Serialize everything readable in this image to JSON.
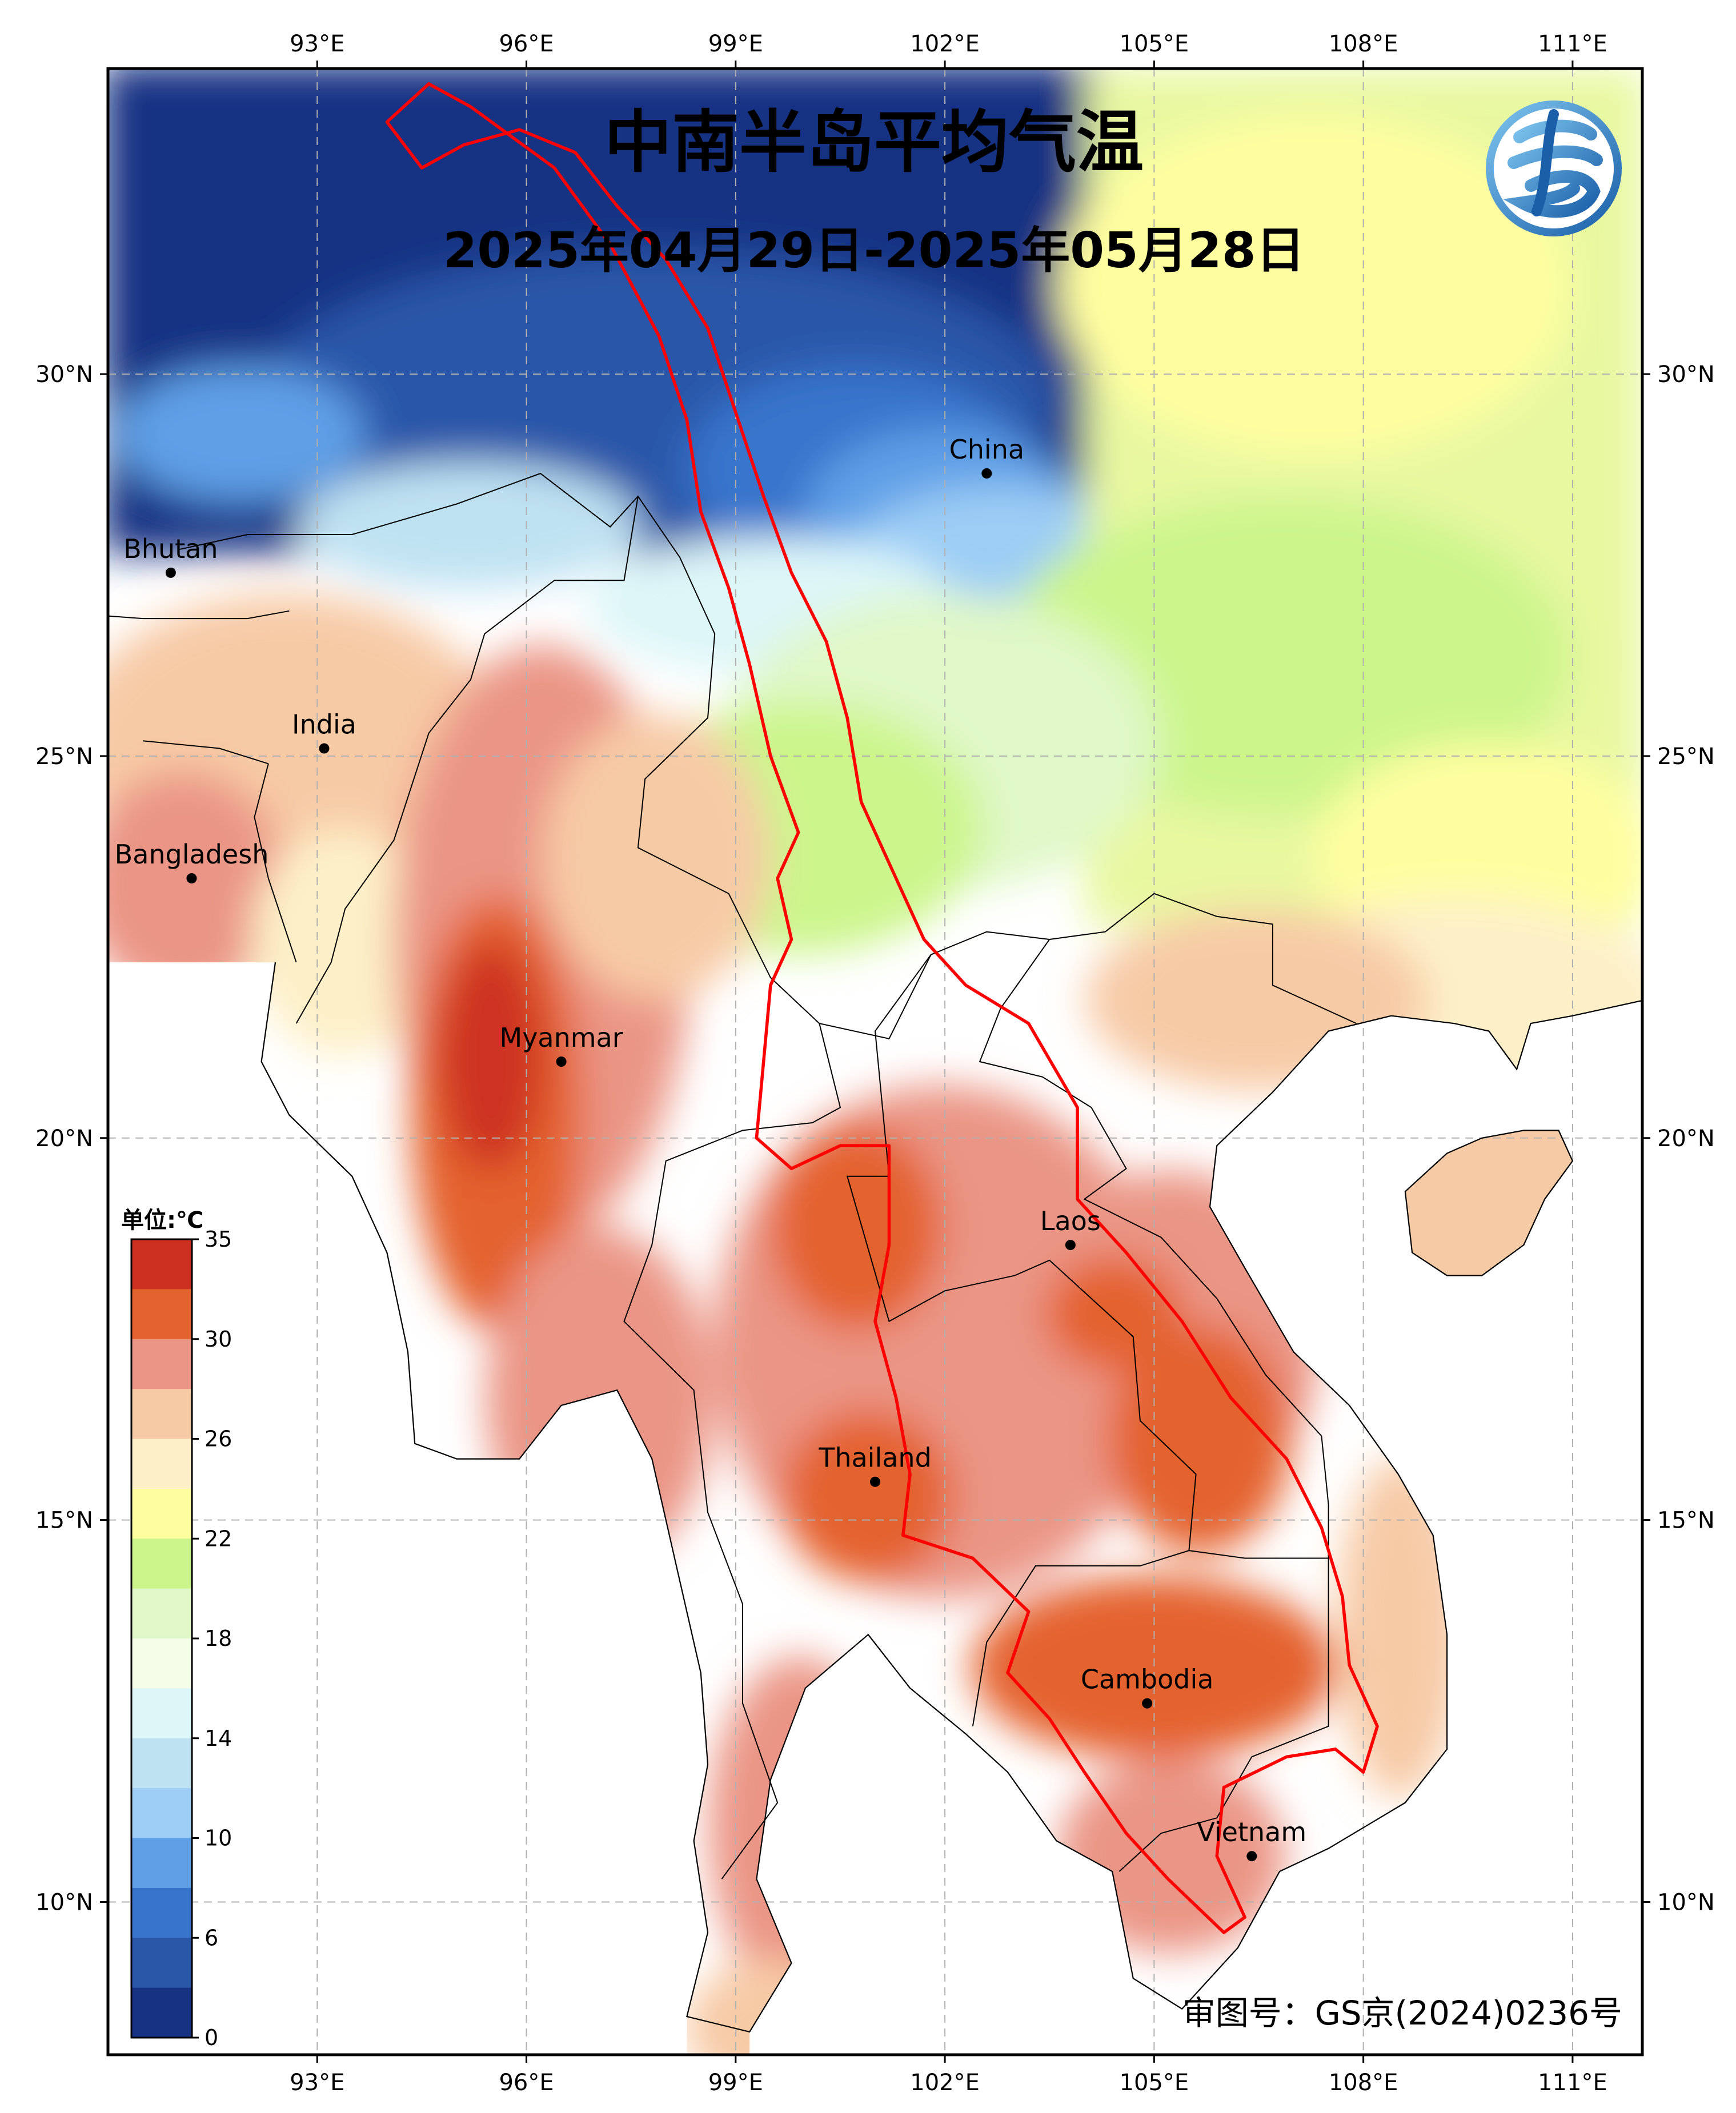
{
  "title": "中南半岛平均气温",
  "subtitle": "2025年04月29日-2025年05月28日",
  "review_number": "审图号：GS京(2024)0236号",
  "map": {
    "lon_range": [
      90,
      112
    ],
    "lat_range": [
      8,
      34
    ],
    "lon_ticks": [
      {
        "value": 93,
        "label": "93°E"
      },
      {
        "value": 96,
        "label": "96°E"
      },
      {
        "value": 99,
        "label": "99°E"
      },
      {
        "value": 102,
        "label": "102°E"
      },
      {
        "value": 105,
        "label": "105°E"
      },
      {
        "value": 108,
        "label": "108°E"
      },
      {
        "value": 111,
        "label": "111°E"
      }
    ],
    "lat_ticks": [
      {
        "value": 30,
        "label": "30°N"
      },
      {
        "value": 25,
        "label": "25°N"
      },
      {
        "value": 20,
        "label": "20°N"
      },
      {
        "value": 15,
        "label": "15°N"
      },
      {
        "value": 10,
        "label": "10°N"
      }
    ],
    "places": [
      {
        "name": "China",
        "lon": 102.6,
        "lat": 28.7
      },
      {
        "name": "Bhutan",
        "lon": 90.9,
        "lat": 27.4
      },
      {
        "name": "India",
        "lon": 93.1,
        "lat": 25.1
      },
      {
        "name": "Bangladesh",
        "lon": 91.2,
        "lat": 23.4
      },
      {
        "name": "Myanmar",
        "lon": 96.5,
        "lat": 21.0
      },
      {
        "name": "Laos",
        "lon": 103.8,
        "lat": 18.6
      },
      {
        "name": "Thailand",
        "lon": 101.0,
        "lat": 15.5
      },
      {
        "name": "Cambodia",
        "lon": 104.9,
        "lat": 12.6
      },
      {
        "name": "Vietnam",
        "lon": 106.4,
        "lat": 10.6
      }
    ],
    "mekong_basin_outline": [
      [
        94.0,
        33.3
      ],
      [
        94.6,
        33.8
      ],
      [
        95.2,
        33.5
      ],
      [
        96.4,
        32.7
      ],
      [
        97.2,
        31.7
      ],
      [
        97.9,
        30.5
      ],
      [
        98.3,
        29.4
      ],
      [
        98.5,
        28.2
      ],
      [
        98.9,
        27.2
      ],
      [
        99.2,
        26.2
      ],
      [
        99.5,
        25.0
      ],
      [
        99.9,
        24.0
      ],
      [
        99.6,
        23.4
      ],
      [
        99.8,
        22.6
      ],
      [
        99.5,
        22.0
      ],
      [
        99.4,
        21.0
      ],
      [
        99.3,
        20.0
      ],
      [
        99.8,
        19.6
      ],
      [
        100.5,
        19.9
      ],
      [
        101.2,
        19.9
      ],
      [
        101.2,
        18.6
      ],
      [
        101.0,
        17.6
      ],
      [
        101.3,
        16.6
      ],
      [
        101.5,
        15.6
      ],
      [
        101.4,
        14.8
      ],
      [
        102.4,
        14.5
      ],
      [
        103.2,
        13.8
      ],
      [
        102.9,
        13.0
      ],
      [
        103.5,
        12.4
      ],
      [
        104.0,
        11.7
      ],
      [
        104.6,
        10.9
      ],
      [
        105.2,
        10.3
      ],
      [
        106.0,
        9.6
      ],
      [
        106.3,
        9.8
      ],
      [
        105.9,
        10.6
      ],
      [
        106.0,
        11.5
      ],
      [
        106.9,
        11.9
      ],
      [
        107.6,
        12.0
      ],
      [
        108.0,
        11.7
      ],
      [
        108.2,
        12.3
      ],
      [
        107.8,
        13.1
      ],
      [
        107.7,
        14.0
      ],
      [
        107.4,
        14.9
      ],
      [
        106.9,
        15.8
      ],
      [
        106.1,
        16.6
      ],
      [
        105.4,
        17.6
      ],
      [
        104.6,
        18.5
      ],
      [
        103.9,
        19.2
      ],
      [
        103.9,
        20.4
      ],
      [
        103.2,
        21.5
      ],
      [
        102.3,
        22.0
      ],
      [
        101.7,
        22.6
      ],
      [
        101.3,
        23.4
      ],
      [
        100.8,
        24.4
      ],
      [
        100.6,
        25.5
      ],
      [
        100.3,
        26.5
      ],
      [
        99.8,
        27.4
      ],
      [
        99.4,
        28.4
      ],
      [
        99.0,
        29.5
      ],
      [
        98.6,
        30.6
      ],
      [
        98.0,
        31.5
      ],
      [
        97.3,
        32.2
      ],
      [
        96.7,
        32.9
      ],
      [
        95.9,
        33.2
      ],
      [
        95.1,
        33.0
      ],
      [
        94.5,
        32.7
      ]
    ],
    "coastline": [
      [
        92.4,
        22.3
      ],
      [
        92.2,
        21.0
      ],
      [
        92.6,
        20.3
      ],
      [
        93.5,
        19.5
      ],
      [
        94.0,
        18.5
      ],
      [
        94.3,
        17.2
      ],
      [
        94.4,
        16.0
      ],
      [
        95.0,
        15.8
      ],
      [
        95.9,
        15.8
      ],
      [
        96.5,
        16.5
      ],
      [
        97.3,
        16.7
      ],
      [
        97.8,
        15.8
      ],
      [
        98.1,
        14.6
      ],
      [
        98.5,
        13.0
      ],
      [
        98.6,
        11.8
      ],
      [
        98.4,
        10.8
      ],
      [
        98.6,
        9.6
      ],
      [
        98.3,
        8.5
      ],
      [
        99.2,
        8.3
      ],
      [
        99.8,
        9.2
      ],
      [
        99.3,
        10.3
      ],
      [
        99.5,
        11.6
      ],
      [
        100.0,
        12.8
      ],
      [
        100.9,
        13.5
      ],
      [
        101.5,
        12.8
      ],
      [
        102.3,
        12.2
      ],
      [
        102.9,
        11.7
      ],
      [
        103.6,
        10.8
      ],
      [
        104.4,
        10.4
      ],
      [
        104.7,
        9.0
      ],
      [
        105.4,
        8.6
      ],
      [
        106.2,
        9.4
      ],
      [
        106.8,
        10.4
      ],
      [
        107.5,
        10.7
      ],
      [
        108.6,
        11.3
      ],
      [
        109.2,
        12.0
      ],
      [
        109.2,
        13.5
      ],
      [
        109.0,
        14.8
      ],
      [
        108.5,
        15.6
      ],
      [
        107.8,
        16.5
      ],
      [
        107.0,
        17.2
      ],
      [
        106.3,
        18.3
      ],
      [
        105.8,
        19.1
      ],
      [
        105.9,
        19.9
      ],
      [
        106.7,
        20.6
      ],
      [
        107.5,
        21.4
      ],
      [
        108.4,
        21.6
      ],
      [
        109.3,
        21.5
      ],
      [
        109.8,
        21.4
      ],
      [
        110.2,
        20.9
      ],
      [
        110.4,
        21.5
      ],
      [
        111.0,
        21.6
      ],
      [
        112.0,
        21.8
      ]
    ],
    "hainan": [
      [
        108.6,
        19.3
      ],
      [
        108.7,
        18.5
      ],
      [
        109.2,
        18.2
      ],
      [
        109.7,
        18.2
      ],
      [
        110.3,
        18.6
      ],
      [
        110.6,
        19.2
      ],
      [
        111.0,
        19.7
      ],
      [
        110.8,
        20.1
      ],
      [
        110.3,
        20.1
      ],
      [
        109.7,
        20.0
      ],
      [
        109.2,
        19.8
      ],
      [
        108.6,
        19.3
      ]
    ],
    "borders": [
      [
        [
          91.0,
          27.7
        ],
        [
          92.0,
          27.9
        ],
        [
          93.5,
          27.9
        ],
        [
          95.0,
          28.3
        ],
        [
          96.2,
          28.7
        ],
        [
          97.2,
          28.0
        ],
        [
          97.6,
          28.4
        ],
        [
          98.2,
          27.6
        ]
      ],
      [
        [
          89.0,
          26.9
        ],
        [
          90.5,
          26.8
        ],
        [
          92.0,
          26.8
        ],
        [
          92.6,
          26.9
        ]
      ],
      [
        [
          97.6,
          28.4
        ],
        [
          97.4,
          27.3
        ],
        [
          96.4,
          27.3
        ],
        [
          95.4,
          26.6
        ],
        [
          95.2,
          26.0
        ],
        [
          94.6,
          25.3
        ],
        [
          94.1,
          23.9
        ],
        [
          93.4,
          23.0
        ],
        [
          93.2,
          22.3
        ],
        [
          92.7,
          21.5
        ]
      ],
      [
        [
          92.3,
          24.9
        ],
        [
          91.6,
          25.1
        ],
        [
          90.5,
          25.2
        ]
      ],
      [
        [
          92.7,
          22.3
        ],
        [
          92.3,
          23.4
        ],
        [
          92.1,
          24.2
        ],
        [
          92.3,
          24.9
        ]
      ],
      [
        [
          98.2,
          27.6
        ],
        [
          98.7,
          26.6
        ],
        [
          98.6,
          25.5
        ],
        [
          97.7,
          24.7
        ],
        [
          97.6,
          23.8
        ],
        [
          98.9,
          23.2
        ],
        [
          99.5,
          22.1
        ],
        [
          100.2,
          21.5
        ],
        [
          101.2,
          21.3
        ],
        [
          101.8,
          22.4
        ],
        [
          102.6,
          22.7
        ],
        [
          103.5,
          22.6
        ],
        [
          104.3,
          22.7
        ],
        [
          105.0,
          23.2
        ],
        [
          105.9,
          22.9
        ],
        [
          106.7,
          22.8
        ],
        [
          106.7,
          22.0
        ],
        [
          107.9,
          21.5
        ]
      ],
      [
        [
          100.2,
          21.5
        ],
        [
          100.5,
          20.4
        ],
        [
          100.1,
          20.2
        ],
        [
          99.1,
          20.1
        ],
        [
          98.0,
          19.7
        ],
        [
          97.8,
          18.6
        ],
        [
          97.4,
          17.6
        ],
        [
          98.4,
          16.7
        ],
        [
          98.6,
          15.1
        ],
        [
          99.1,
          13.9
        ],
        [
          99.1,
          12.6
        ],
        [
          99.6,
          11.3
        ],
        [
          98.8,
          10.3
        ]
      ],
      [
        [
          101.8,
          22.4
        ],
        [
          101.0,
          21.4
        ],
        [
          101.2,
          19.5
        ],
        [
          100.6,
          19.5
        ],
        [
          101.2,
          17.6
        ],
        [
          102.0,
          18.0
        ],
        [
          103.0,
          18.2
        ],
        [
          103.5,
          18.4
        ],
        [
          104.7,
          17.4
        ],
        [
          104.8,
          16.3
        ],
        [
          105.6,
          15.6
        ],
        [
          105.5,
          14.6
        ],
        [
          104.8,
          14.4
        ],
        [
          103.3,
          14.4
        ],
        [
          102.6,
          13.4
        ],
        [
          102.4,
          12.3
        ]
      ],
      [
        [
          103.5,
          22.6
        ],
        [
          102.8,
          21.7
        ],
        [
          102.5,
          21.0
        ],
        [
          103.4,
          20.8
        ],
        [
          104.1,
          20.4
        ],
        [
          104.6,
          19.6
        ],
        [
          104.0,
          19.2
        ],
        [
          105.1,
          18.7
        ],
        [
          105.9,
          17.9
        ],
        [
          106.6,
          16.9
        ],
        [
          107.4,
          16.1
        ],
        [
          107.5,
          15.2
        ],
        [
          107.5,
          14.5
        ]
      ],
      [
        [
          105.5,
          14.6
        ],
        [
          106.3,
          14.5
        ],
        [
          107.5,
          14.5
        ],
        [
          107.5,
          13.3
        ],
        [
          107.5,
          12.3
        ],
        [
          106.4,
          11.9
        ],
        [
          105.9,
          11.1
        ],
        [
          105.1,
          10.9
        ],
        [
          104.5,
          10.4
        ]
      ]
    ]
  },
  "colorbar": {
    "unit": "单位:℃",
    "labels": [
      "35",
      "30",
      "26",
      "22",
      "18",
      "14",
      "10",
      "6",
      "0"
    ],
    "colors": [
      "#cd3020",
      "#e4622e",
      "#ea9585",
      "#f7caa6",
      "#fdf0c8",
      "#fefea0",
      "#ccf58c",
      "#e0f8c8",
      "#f4fde8",
      "#ddf6f8",
      "#bfe2f2",
      "#9dcdf5",
      "#5f9fe6",
      "#3974cc",
      "#2b57a9",
      "#173283"
    ]
  },
  "logo": {
    "icon": "meteorology-logo-icon"
  }
}
